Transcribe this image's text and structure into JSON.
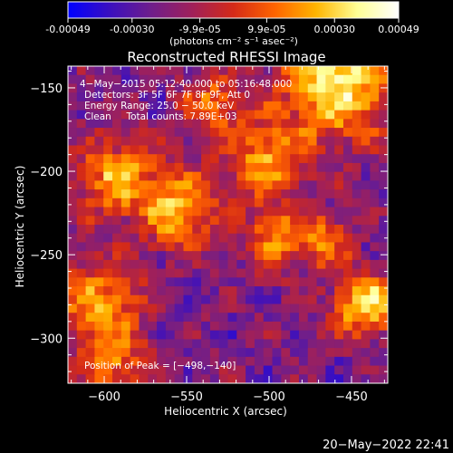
{
  "colorbar": {
    "tick_labels": [
      "-0.00049",
      "-0.00030",
      "-9.9e-05",
      "9.9e-05",
      "0.00030",
      "0.00049"
    ],
    "tick_values": [
      -0.00049,
      -0.0003,
      -9.9e-05,
      9.9e-05,
      0.0003,
      0.00049
    ],
    "range": [
      -0.00049,
      0.00049
    ],
    "units_line": "(photons cm⁻² s⁻¹ asec⁻²)",
    "colormap": [
      "#0000ff",
      "#3a0fc0",
      "#6e1e8c",
      "#a0205a",
      "#d42a18",
      "#ff6400",
      "#ffb400",
      "#ffff96",
      "#ffffff"
    ]
  },
  "chart_data": {
    "type": "heatmap",
    "title": "Reconstructed RHESSI Image",
    "xlabel": "Heliocentric X (arcsec)",
    "ylabel": "Heliocentric Y (arcsec)",
    "xlim": [
      -622,
      -428
    ],
    "ylim": [
      -327,
      -137
    ],
    "x_ticks": [
      -600,
      -550,
      -500,
      -450
    ],
    "y_ticks": [
      -300,
      -250,
      -200,
      -150
    ],
    "x_tick_labels": [
      "−600",
      "−550",
      "−500",
      "−450"
    ],
    "y_tick_labels": [
      "−300",
      "−250",
      "−200",
      "−150"
    ],
    "peak_position": [
      -498,
      -140
    ],
    "grid_size": [
      36,
      36
    ],
    "annotations": [
      "4−May−2015 05:12:40.000 to 05:16:48.000",
      "Detectors: 3F 5F 6F 7F 8F 9F, Att 0",
      "Energy Range: 25.0 − 50.0 keV",
      "Clean     Total counts: 7.89E+03"
    ],
    "peak_label": "Position of Peak = [−498,−140]"
  },
  "footer": {
    "timestamp": "20−May−2022 22:41"
  }
}
